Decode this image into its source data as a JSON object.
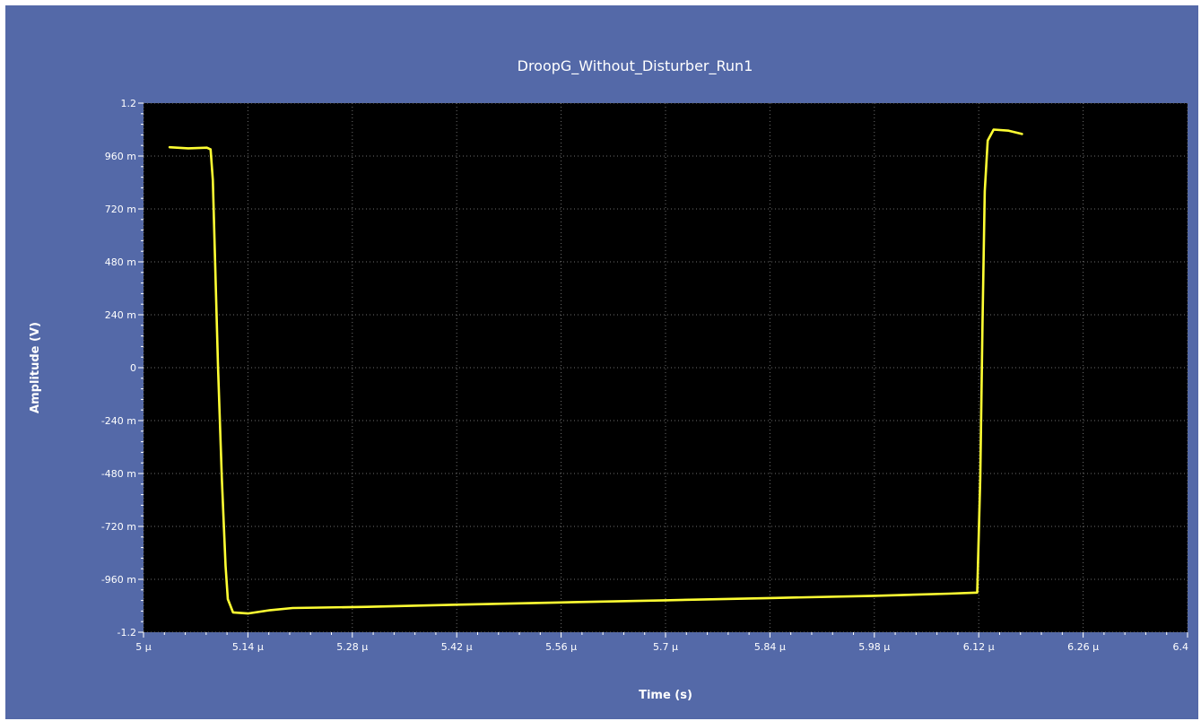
{
  "chart_data": {
    "type": "line",
    "title": "DroopG_Without_Disturber_Run1",
    "xlabel": "Time (s)",
    "ylabel": "Amplitude (V)",
    "xlim": [
      5.0,
      6.4
    ],
    "ylim": [
      -1.2,
      1.2
    ],
    "x_unit_scale": "µ",
    "x_ticks": [
      5.0,
      5.14,
      5.28,
      5.42,
      5.56,
      5.7,
      5.84,
      5.98,
      6.12,
      6.26,
      6.4
    ],
    "x_tick_labels": [
      "5 µ",
      "5.14 µ",
      "5.28 µ",
      "5.42 µ",
      "5.56 µ",
      "5.7 µ",
      "5.84 µ",
      "5.98 µ",
      "6.12 µ",
      "6.26 µ",
      "6.4"
    ],
    "y_ticks": [
      1.2,
      0.96,
      0.72,
      0.48,
      0.24,
      0,
      -0.24,
      -0.48,
      -0.72,
      -0.96,
      -1.2
    ],
    "y_tick_labels": [
      "1.2",
      "960 m",
      "720 m",
      "480 m",
      "240 m",
      "0",
      "-240 m",
      "-480 m",
      "-720 m",
      "-960 m",
      "-1.2"
    ],
    "grid": true,
    "colors": {
      "background": "#5469a8",
      "plot_area": "#000000",
      "grid": "#6e6e6e",
      "trace": "#ffff33",
      "text": "#ffffff"
    },
    "series": [
      {
        "color": "#ffff33",
        "x": [
          5.035,
          5.06,
          5.085,
          5.09,
          5.093,
          5.1,
          5.105,
          5.11,
          5.113,
          5.12,
          5.14,
          5.17,
          5.2,
          5.3,
          5.42,
          5.56,
          5.7,
          5.84,
          5.98,
          6.08,
          6.118,
          6.122,
          6.125,
          6.128,
          6.132,
          6.14,
          6.16,
          6.178
        ],
        "y": [
          1.0,
          0.995,
          0.998,
          0.99,
          0.85,
          0.0,
          -0.5,
          -0.9,
          -1.05,
          -1.11,
          -1.115,
          -1.1,
          -1.09,
          -1.085,
          -1.075,
          -1.065,
          -1.055,
          -1.045,
          -1.035,
          -1.025,
          -1.02,
          -0.5,
          0.2,
          0.8,
          1.03,
          1.08,
          1.075,
          1.06
        ]
      }
    ]
  }
}
